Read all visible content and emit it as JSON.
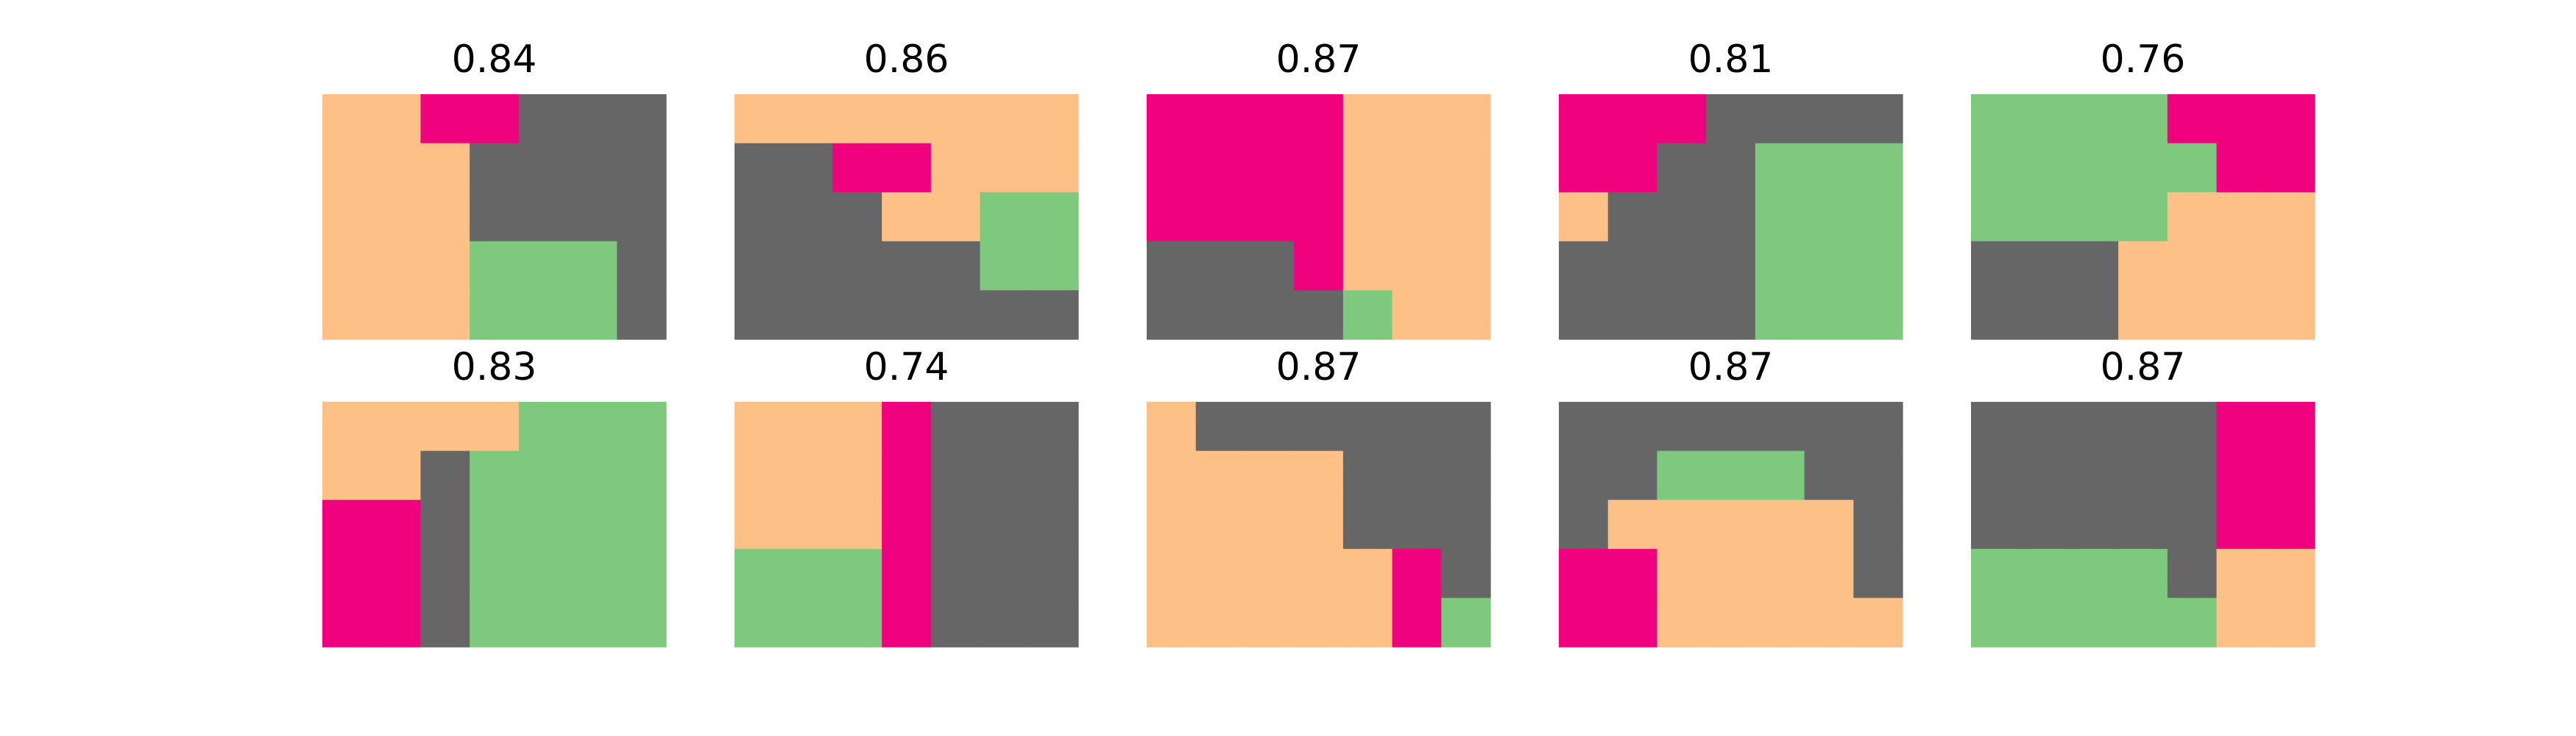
{
  "chart_data": {
    "type": "heatmap",
    "colors": {
      "0": "#666666",
      "1": "#7fc97f",
      "2": "#fdc086",
      "3": "#f0027f"
    },
    "panels": [
      {
        "title": "0.84",
        "grid": [
          [
            2,
            2,
            3,
            3,
            0,
            0,
            0
          ],
          [
            2,
            2,
            2,
            0,
            0,
            0,
            0
          ],
          [
            2,
            2,
            2,
            0,
            0,
            0,
            0
          ],
          [
            2,
            2,
            2,
            1,
            1,
            1,
            0
          ],
          [
            2,
            2,
            2,
            1,
            1,
            1,
            0
          ]
        ]
      },
      {
        "title": "0.86",
        "grid": [
          [
            2,
            2,
            2,
            2,
            2,
            2,
            2
          ],
          [
            0,
            0,
            3,
            3,
            2,
            2,
            2
          ],
          [
            0,
            0,
            0,
            2,
            2,
            1,
            1
          ],
          [
            0,
            0,
            0,
            0,
            0,
            1,
            1
          ],
          [
            0,
            0,
            0,
            0,
            0,
            0,
            0
          ]
        ]
      },
      {
        "title": "0.87",
        "grid": [
          [
            3,
            3,
            3,
            3,
            2,
            2,
            2
          ],
          [
            3,
            3,
            3,
            3,
            2,
            2,
            2
          ],
          [
            3,
            3,
            3,
            3,
            2,
            2,
            2
          ],
          [
            0,
            0,
            0,
            3,
            2,
            2,
            2
          ],
          [
            0,
            0,
            0,
            0,
            1,
            2,
            2
          ]
        ]
      },
      {
        "title": "0.81",
        "grid": [
          [
            3,
            3,
            3,
            0,
            0,
            0,
            0
          ],
          [
            3,
            3,
            0,
            0,
            1,
            1,
            1
          ],
          [
            2,
            0,
            0,
            0,
            1,
            1,
            1
          ],
          [
            0,
            0,
            0,
            0,
            1,
            1,
            1
          ],
          [
            0,
            0,
            0,
            0,
            1,
            1,
            1
          ]
        ]
      },
      {
        "title": "0.76",
        "grid": [
          [
            1,
            1,
            1,
            1,
            3,
            3,
            3
          ],
          [
            1,
            1,
            1,
            1,
            1,
            3,
            3
          ],
          [
            1,
            1,
            1,
            1,
            2,
            2,
            2
          ],
          [
            0,
            0,
            0,
            2,
            2,
            2,
            2
          ],
          [
            0,
            0,
            0,
            2,
            2,
            2,
            2
          ]
        ]
      },
      {
        "title": "0.83",
        "grid": [
          [
            2,
            2,
            2,
            2,
            1,
            1,
            1
          ],
          [
            2,
            2,
            0,
            1,
            1,
            1,
            1
          ],
          [
            3,
            3,
            0,
            1,
            1,
            1,
            1
          ],
          [
            3,
            3,
            0,
            1,
            1,
            1,
            1
          ],
          [
            3,
            3,
            0,
            1,
            1,
            1,
            1
          ]
        ]
      },
      {
        "title": "0.74",
        "grid": [
          [
            2,
            2,
            2,
            3,
            0,
            0,
            0
          ],
          [
            2,
            2,
            2,
            3,
            0,
            0,
            0
          ],
          [
            2,
            2,
            2,
            3,
            0,
            0,
            0
          ],
          [
            1,
            1,
            1,
            3,
            0,
            0,
            0
          ],
          [
            1,
            1,
            1,
            3,
            0,
            0,
            0
          ]
        ]
      },
      {
        "title": "0.87",
        "grid": [
          [
            2,
            0,
            0,
            0,
            0,
            0,
            0
          ],
          [
            2,
            2,
            2,
            2,
            0,
            0,
            0
          ],
          [
            2,
            2,
            2,
            2,
            0,
            0,
            0
          ],
          [
            2,
            2,
            2,
            2,
            2,
            3,
            0
          ],
          [
            2,
            2,
            2,
            2,
            2,
            3,
            1
          ]
        ]
      },
      {
        "title": "0.87",
        "grid": [
          [
            0,
            0,
            0,
            0,
            0,
            0,
            0
          ],
          [
            0,
            0,
            1,
            1,
            1,
            0,
            0
          ],
          [
            0,
            2,
            2,
            2,
            2,
            2,
            0
          ],
          [
            3,
            3,
            2,
            2,
            2,
            2,
            0
          ],
          [
            3,
            3,
            2,
            2,
            2,
            2,
            2
          ]
        ]
      },
      {
        "title": "0.87",
        "grid": [
          [
            0,
            0,
            0,
            0,
            0,
            3,
            3
          ],
          [
            0,
            0,
            0,
            0,
            0,
            3,
            3
          ],
          [
            0,
            0,
            0,
            0,
            0,
            3,
            3
          ],
          [
            1,
            1,
            1,
            1,
            0,
            2,
            2
          ],
          [
            1,
            1,
            1,
            1,
            1,
            2,
            2
          ]
        ]
      }
    ]
  }
}
